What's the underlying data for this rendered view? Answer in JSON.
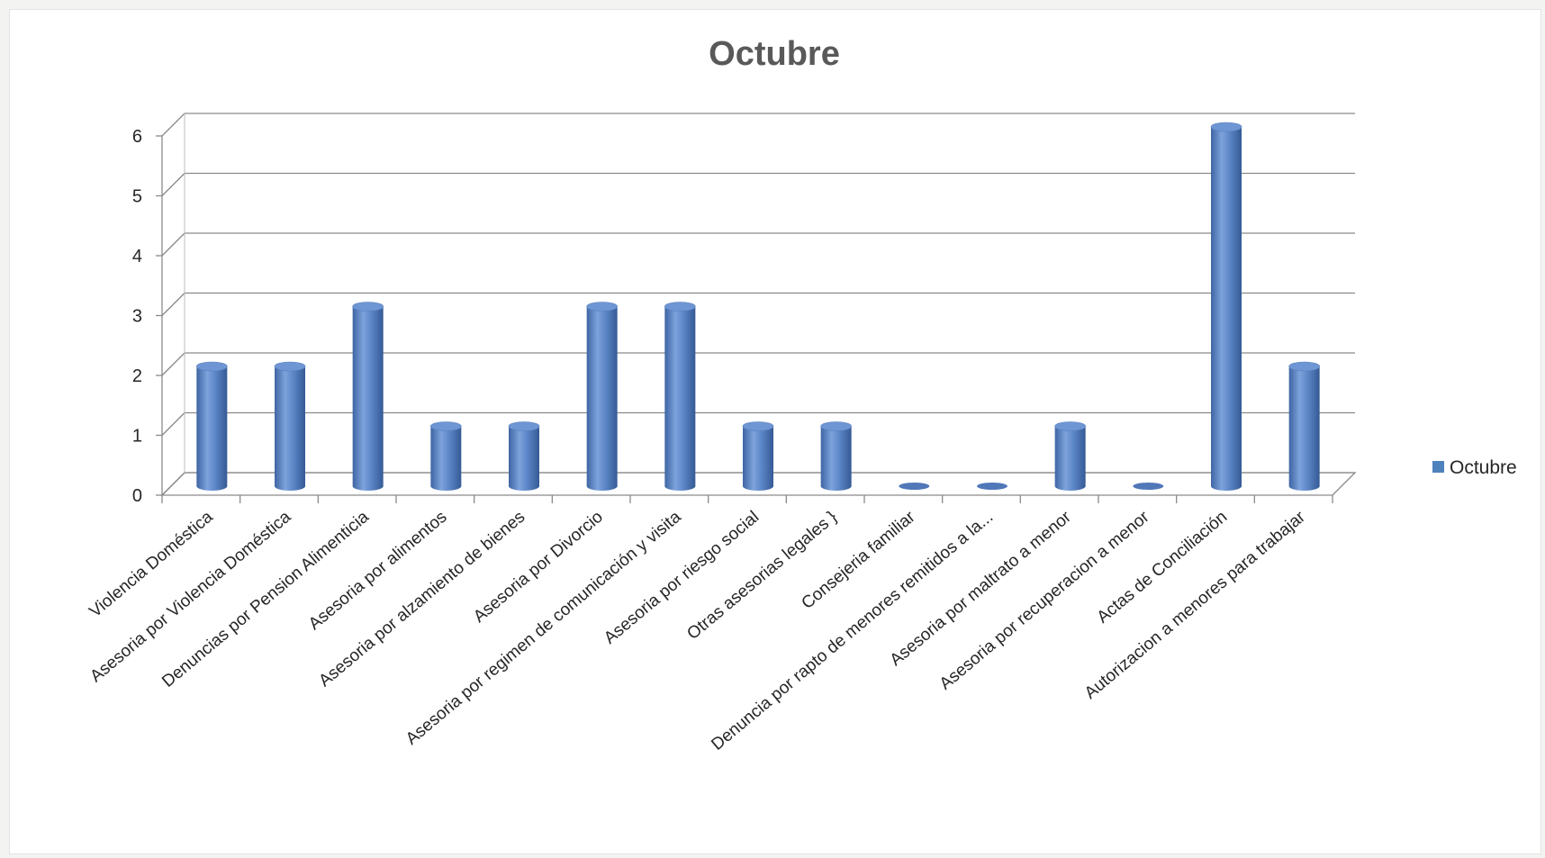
{
  "chart_data": {
    "type": "bar",
    "variant": "3d-cylinder",
    "title": "Octubre",
    "xlabel": "",
    "ylabel": "",
    "ylim": [
      0,
      6
    ],
    "yticks": [
      "0",
      "1",
      "2",
      "3",
      "4",
      "5",
      "6"
    ],
    "grid": true,
    "legend_position": "right",
    "categories": [
      "Violencia Doméstica",
      "Asesoria por Violencia  Doméstica",
      "Denuncias por Pension Alimenticia",
      "Asesoria por alimentos",
      "Asesoria por alzamiento de bienes",
      "Asesoria por Divorcio",
      "Asesoria por regimen de comunicación y visita",
      "Asesoria por riesgo social",
      "Otras asesorias legales }",
      "Consejeria familiar",
      "Denuncia por rapto de menores remitidos a la...",
      "Asesoria por maltrato a menor",
      "Asesoria por recuperacion a menor",
      "Actas de Conciliación",
      "Autorizacion a menores para trabajar"
    ],
    "series": [
      {
        "name": "Octubre",
        "color": "#4f81bd",
        "values": [
          2,
          2,
          3,
          1,
          1,
          3,
          3,
          1,
          1,
          0,
          0,
          1,
          0,
          6,
          2
        ]
      }
    ]
  }
}
